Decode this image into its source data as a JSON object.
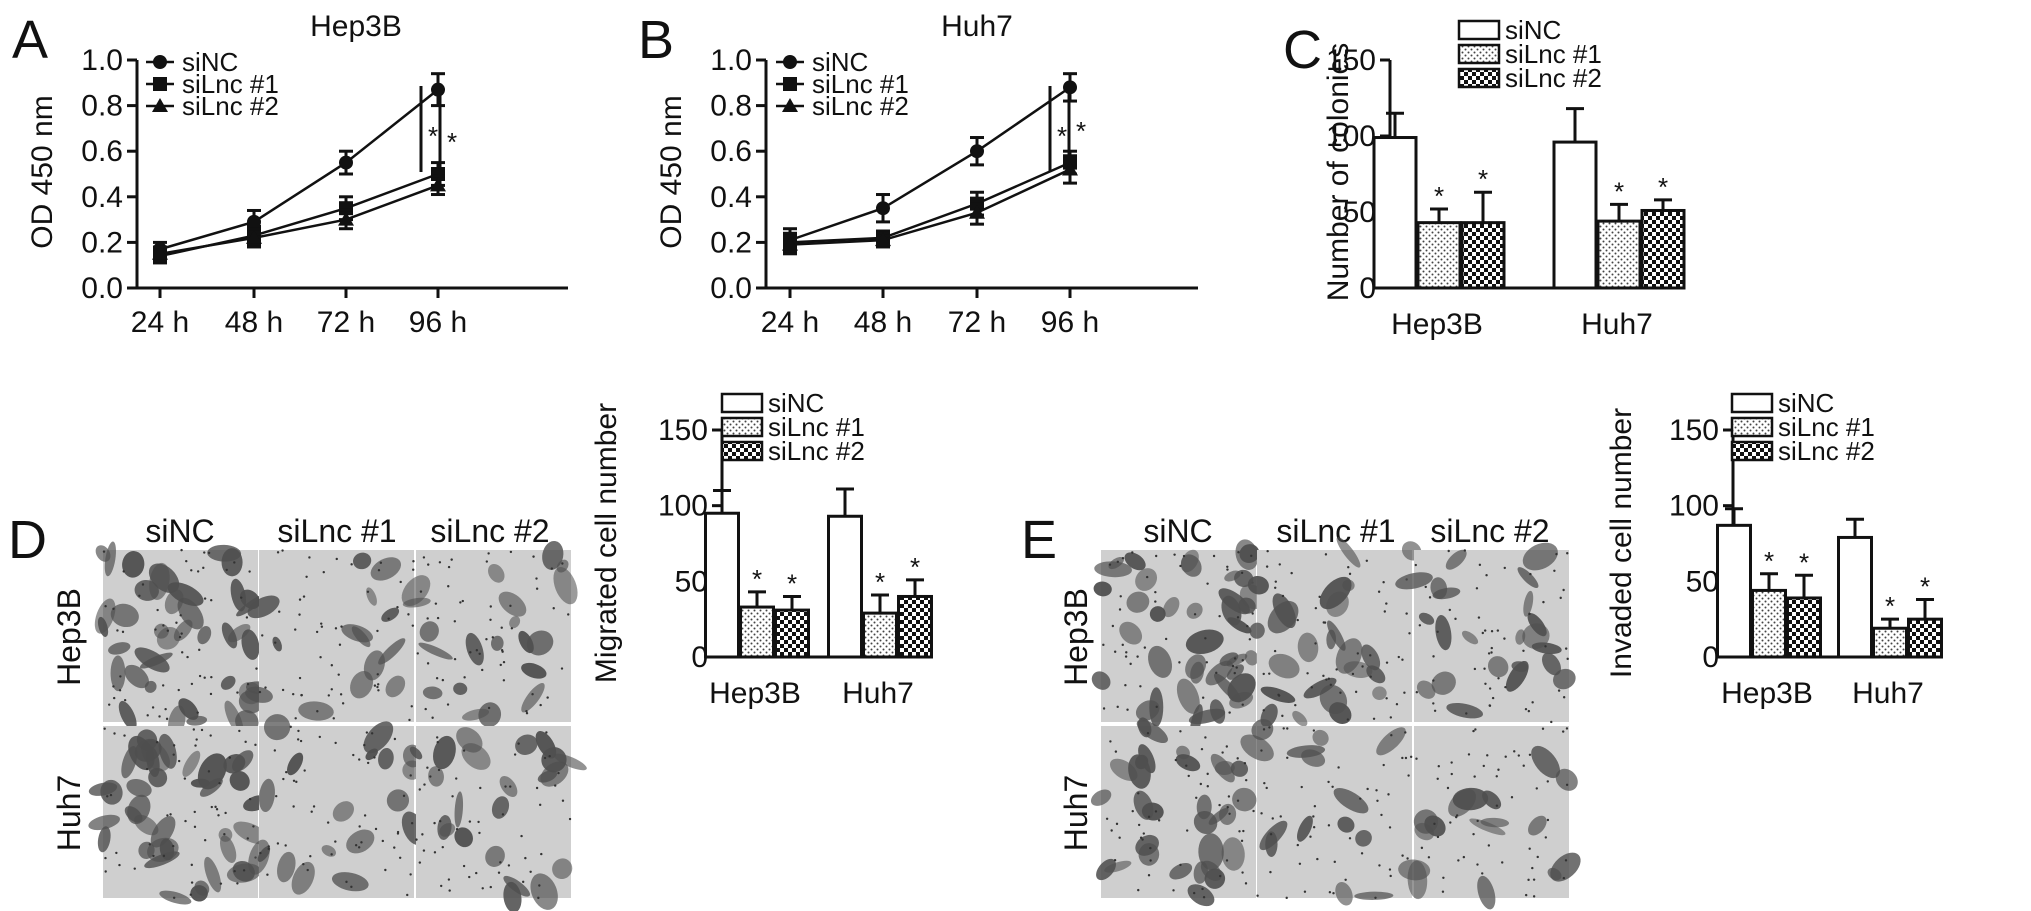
{
  "chart_data": [
    {
      "panel": "A",
      "type": "line",
      "title": "Hep3B",
      "ylabel": "OD 450 nm",
      "xlabel": "",
      "categories": [
        "24 h",
        "48 h",
        "72 h",
        "96 h"
      ],
      "ylim": [
        0,
        1.0
      ],
      "yticks": [
        "0.0",
        "0.2",
        "0.4",
        "0.6",
        "0.8",
        "1.0"
      ],
      "series": [
        {
          "name": "siNC",
          "marker": "circle",
          "values": [
            0.17,
            0.29,
            0.55,
            0.87
          ],
          "errors": [
            0.03,
            0.05,
            0.05,
            0.07
          ]
        },
        {
          "name": "siLnc #1",
          "marker": "square",
          "values": [
            0.14,
            0.23,
            0.35,
            0.5
          ],
          "errors": [
            0.03,
            0.04,
            0.05,
            0.05
          ]
        },
        {
          "name": "siLnc #2",
          "marker": "triangle",
          "values": [
            0.15,
            0.22,
            0.3,
            0.45
          ],
          "errors": [
            0.03,
            0.04,
            0.04,
            0.04
          ]
        }
      ],
      "annotations": [
        "*",
        "*"
      ]
    },
    {
      "panel": "B",
      "type": "line",
      "title": "Huh7",
      "ylabel": "OD 450 nm",
      "xlabel": "",
      "categories": [
        "24 h",
        "48 h",
        "72 h",
        "96 h"
      ],
      "ylim": [
        0,
        1.0
      ],
      "yticks": [
        "0.0",
        "0.2",
        "0.4",
        "0.6",
        "0.8",
        "1.0"
      ],
      "series": [
        {
          "name": "siNC",
          "marker": "circle",
          "values": [
            0.21,
            0.35,
            0.6,
            0.88
          ],
          "errors": [
            0.05,
            0.06,
            0.06,
            0.06
          ]
        },
        {
          "name": "siLnc #1",
          "marker": "square",
          "values": [
            0.2,
            0.22,
            0.37,
            0.55
          ],
          "errors": [
            0.04,
            0.03,
            0.05,
            0.05
          ]
        },
        {
          "name": "siLnc #2",
          "marker": "triangle",
          "values": [
            0.19,
            0.21,
            0.33,
            0.52
          ],
          "errors": [
            0.04,
            0.03,
            0.05,
            0.06
          ]
        }
      ],
      "annotations": [
        "*",
        "*"
      ]
    },
    {
      "panel": "C",
      "type": "bar",
      "title": "",
      "ylabel": "Number of colonies",
      "xlabel": "",
      "categories": [
        "Hep3B",
        "Huh7"
      ],
      "ylim": [
        0,
        150
      ],
      "yticks": [
        "0",
        "50",
        "100",
        "150"
      ],
      "series": [
        {
          "name": "siNC",
          "pattern": "open",
          "values": [
            99,
            96
          ],
          "errors": [
            16,
            22
          ]
        },
        {
          "name": "siLnc #1",
          "pattern": "dots",
          "values": [
            43,
            44
          ],
          "errors": [
            9,
            11
          ]
        },
        {
          "name": "siLnc #2",
          "pattern": "checker",
          "values": [
            43,
            51
          ],
          "errors": [
            20,
            7
          ]
        }
      ],
      "significance": [
        [
          "",
          "*",
          "*"
        ],
        [
          "",
          "*",
          "*"
        ]
      ]
    },
    {
      "panel": "D",
      "type": "bar",
      "title": "",
      "ylabel": "Migrated cell number",
      "xlabel": "",
      "categories": [
        "Hep3B",
        "Huh7"
      ],
      "ylim": [
        0,
        150
      ],
      "yticks": [
        "0",
        "50",
        "100",
        "150"
      ],
      "series": [
        {
          "name": "siNC",
          "pattern": "open",
          "values": [
            95,
            93
          ],
          "errors": [
            15,
            18
          ]
        },
        {
          "name": "siLnc #1",
          "pattern": "dots",
          "values": [
            33,
            29
          ],
          "errors": [
            10,
            12
          ]
        },
        {
          "name": "siLnc #2",
          "pattern": "checker",
          "values": [
            31,
            40
          ],
          "errors": [
            9,
            11
          ]
        }
      ],
      "significance": [
        [
          "",
          "*",
          "*"
        ],
        [
          "",
          "*",
          "*"
        ]
      ]
    },
    {
      "panel": "E",
      "type": "bar",
      "title": "",
      "ylabel": "Invaded cell number",
      "xlabel": "",
      "categories": [
        "Hep3B",
        "Huh7"
      ],
      "ylim": [
        0,
        150
      ],
      "yticks": [
        "0",
        "50",
        "100",
        "150"
      ],
      "series": [
        {
          "name": "siNC",
          "pattern": "open",
          "values": [
            87,
            79
          ],
          "errors": [
            11,
            12
          ]
        },
        {
          "name": "siLnc #1",
          "pattern": "dots",
          "values": [
            44,
            19
          ],
          "errors": [
            11,
            6
          ]
        },
        {
          "name": "siLnc #2",
          "pattern": "checker",
          "values": [
            39,
            25
          ],
          "errors": [
            15,
            13
          ]
        }
      ],
      "significance": [
        [
          "",
          "*",
          "*"
        ],
        [
          "",
          "*",
          "*"
        ]
      ]
    }
  ],
  "micrographs": {
    "D": {
      "letter": "D",
      "columns": [
        "siNC",
        "siLnc #1",
        "siLnc #2"
      ],
      "rows": [
        "Hep3B",
        "Huh7"
      ]
    },
    "E": {
      "letter": "E",
      "columns": [
        "siNC",
        "siLnc #1",
        "siLnc #2"
      ],
      "rows": [
        "Hep3B",
        "Huh7"
      ]
    }
  },
  "colors": {
    "ink": "#111111",
    "micro_bg": "#cfcfcf",
    "micro_cell": "#4f4f4f"
  }
}
